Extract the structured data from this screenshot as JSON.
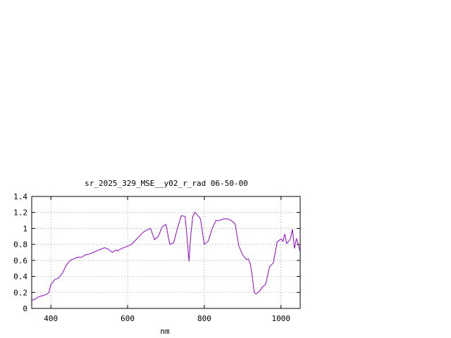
{
  "chart_data": {
    "type": "line",
    "title": "sr_2025_329_MSE__y02_r_rad 06-50-00",
    "xlabel": "nm",
    "ylabel": "",
    "xlim": [
      350,
      1050
    ],
    "ylim": [
      0,
      1.4
    ],
    "grid": true,
    "x_ticks": [
      {
        "value": 400,
        "label": "400"
      },
      {
        "value": 600,
        "label": "600"
      },
      {
        "value": 800,
        "label": "800"
      },
      {
        "value": 1000,
        "label": "1000"
      }
    ],
    "y_ticks": [
      {
        "value": 0,
        "label": "0"
      },
      {
        "value": 0.2,
        "label": "0.2"
      },
      {
        "value": 0.4,
        "label": "0.4"
      },
      {
        "value": 0.6,
        "label": "0.6"
      },
      {
        "value": 0.8,
        "label": "0.8"
      },
      {
        "value": 1.0,
        "label": "1"
      },
      {
        "value": 1.2,
        "label": "1.2"
      },
      {
        "value": 1.4,
        "label": "1.4"
      }
    ],
    "series_color": "#9400d3",
    "series": [
      {
        "x": [
          350,
          360,
          370,
          380,
          390,
          395,
          400,
          410,
          420,
          430,
          440,
          450,
          460,
          470,
          480,
          490,
          500,
          510,
          520,
          530,
          540,
          550,
          560,
          570,
          575,
          580,
          590,
          600,
          610,
          620,
          630,
          640,
          650,
          660,
          670,
          680,
          690,
          700,
          710,
          720,
          730,
          740,
          750,
          755,
          760,
          765,
          770,
          775,
          780,
          790,
          800,
          810,
          820,
          830,
          840,
          850,
          860,
          870,
          880,
          890,
          900,
          910,
          915,
          920,
          925,
          930,
          935,
          940,
          945,
          950,
          960,
          970,
          980,
          990,
          1000,
          1005,
          1010,
          1015,
          1020,
          1025,
          1030,
          1035,
          1040,
          1045,
          1050
        ],
        "y": [
          0.1,
          0.12,
          0.15,
          0.16,
          0.18,
          0.2,
          0.3,
          0.36,
          0.38,
          0.44,
          0.54,
          0.6,
          0.62,
          0.64,
          0.64,
          0.67,
          0.68,
          0.7,
          0.72,
          0.74,
          0.76,
          0.74,
          0.7,
          0.73,
          0.72,
          0.74,
          0.76,
          0.78,
          0.8,
          0.85,
          0.9,
          0.95,
          0.98,
          1.0,
          0.86,
          0.9,
          1.02,
          1.05,
          0.8,
          0.82,
          1.0,
          1.16,
          1.15,
          0.9,
          0.59,
          0.94,
          1.15,
          1.2,
          1.18,
          1.12,
          0.8,
          0.84,
          0.99,
          1.1,
          1.1,
          1.12,
          1.12,
          1.1,
          1.06,
          0.78,
          0.67,
          0.61,
          0.62,
          0.56,
          0.4,
          0.2,
          0.18,
          0.2,
          0.22,
          0.26,
          0.3,
          0.52,
          0.57,
          0.83,
          0.87,
          0.84,
          0.93,
          0.81,
          0.84,
          0.88,
          0.99,
          0.75,
          0.87,
          0.8,
          0.71
        ]
      }
    ]
  }
}
